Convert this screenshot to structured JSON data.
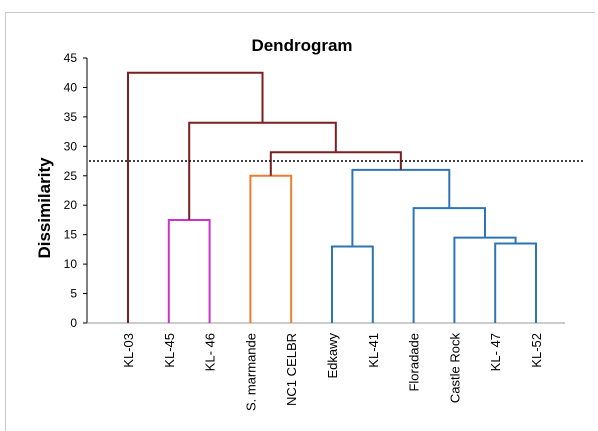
{
  "chart_data": {
    "type": "dendrogram",
    "title": "Dendrogram",
    "xlabel": "",
    "ylabel": "Dissimilarity",
    "ylim": [
      0,
      45
    ],
    "yticks": [
      0,
      5,
      10,
      15,
      20,
      25,
      30,
      35,
      40,
      45
    ],
    "leaves": [
      "KL-03",
      "KL-45",
      "KL- 46",
      "S. marmande",
      "NC1 CELBR",
      "Edkawy",
      "KL-41",
      "Floradade",
      "Castle Rock",
      "KL- 47",
      "KL-52"
    ],
    "threshold": 27.5,
    "threshold_style": "dotted",
    "merges": [
      {
        "left": 9,
        "right": 10,
        "height": 13.5,
        "color": "#2e75b6"
      },
      {
        "left": 8,
        "right": "m0",
        "height": 14.5,
        "color": "#2e75b6"
      },
      {
        "left": 5,
        "right": 6,
        "height": 13.0,
        "color": "#2e75b6"
      },
      {
        "left": 1,
        "right": 2,
        "height": 17.5,
        "color": "#cc33cc"
      },
      {
        "left": 7,
        "right": "m1",
        "height": 19.5,
        "color": "#2e75b6"
      },
      {
        "left": 3,
        "right": 4,
        "height": 25.0,
        "color": "#ed7d31"
      },
      {
        "left": "m2",
        "right": "m4",
        "height": 26.0,
        "color": "#2e75b6"
      },
      {
        "left": "m5",
        "right": "m6",
        "height": 29.0,
        "color": "#7b1f1f"
      },
      {
        "left": "m3",
        "right": "m7",
        "height": 34.0,
        "color": "#7b1f1f"
      },
      {
        "left": 0,
        "right": "m8",
        "height": 42.5,
        "color": "#7b1f1f"
      }
    ],
    "grid": false,
    "legend": "none",
    "colors": {
      "root_cluster": "#7b1f1f",
      "cluster_magenta": "#cc33cc",
      "cluster_orange": "#ed7d31",
      "cluster_blue": "#2e75b6",
      "axis": "#000000",
      "threshold": "#000000"
    }
  }
}
